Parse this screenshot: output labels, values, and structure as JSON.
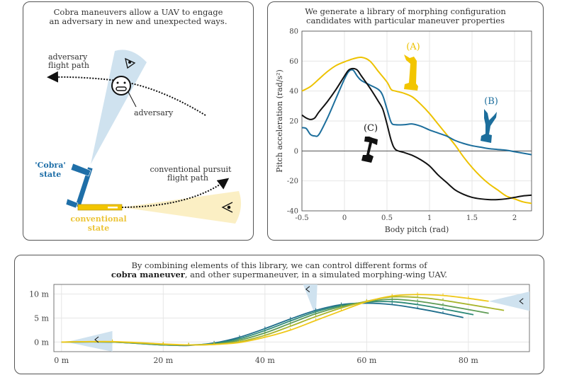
{
  "left_panel": {
    "title_line1": "Cobra maneuvers allow a UAV to engage",
    "title_line2": "an adversary in new and unexpected ways.",
    "adversary_path_label_1": "adversary",
    "adversary_path_label_2": "flight path",
    "adversary_label": "adversary",
    "cobra_label_1": "'Cobra'",
    "cobra_label_2": "state",
    "conventional_label_1": "conventional",
    "conventional_label_2": "state",
    "pursuit_label_1": "conventional pursuit",
    "pursuit_label_2": "flight path",
    "colors": {
      "cobra": "#1f6fa8",
      "conventional": "#f2c500",
      "cone_blue": "#cfe2ef",
      "cone_yellow": "#fbefc4"
    }
  },
  "right_panel": {
    "title_line1": "We generate a library of morphing configuration",
    "title_line2": "candidates with particular maneuver properties"
  },
  "bottom_panel": {
    "title_line1": "By combining elements of this library, we can control different forms of",
    "title_bold": "cobra maneuver",
    "title_line2_rest": ", and other supermaneuver, in a simulated morphing-wing UAV."
  },
  "chart_data": [
    {
      "type": "line",
      "xlabel": "Body pitch (rad)",
      "ylabel": "Pitch acceleration (rad/s²)",
      "xlim": [
        -0.5,
        2.2
      ],
      "ylim": [
        -40,
        80
      ],
      "xticks": [
        "-0.5",
        "0",
        "0.5",
        "1",
        "1.5",
        "2"
      ],
      "yticks": [
        "-40",
        "-20",
        "0",
        "20",
        "40",
        "60",
        "80"
      ],
      "grid": true,
      "series": [
        {
          "name": "(A)",
          "color": "#edc200",
          "x": [
            -0.5,
            -0.4,
            -0.3,
            -0.2,
            -0.1,
            0,
            0.1,
            0.2,
            0.3,
            0.4,
            0.5,
            0.55,
            0.6,
            0.7,
            0.8,
            0.9,
            1.0,
            1.1,
            1.2,
            1.3,
            1.4,
            1.5,
            1.6,
            1.7,
            1.8,
            1.9,
            2.0,
            2.1,
            2.2
          ],
          "y": [
            40,
            43,
            48,
            53,
            57,
            59.5,
            61.5,
            62.5,
            60,
            53,
            46,
            41,
            40,
            38.5,
            36,
            31,
            25,
            18,
            11,
            4,
            -4,
            -11,
            -17,
            -22,
            -26,
            -30,
            -32,
            -34,
            -35
          ]
        },
        {
          "name": "(B)",
          "color": "#1c6e9c",
          "x": [
            -0.5,
            -0.45,
            -0.4,
            -0.35,
            -0.3,
            -0.2,
            -0.1,
            0,
            0.05,
            0.1,
            0.15,
            0.2,
            0.3,
            0.4,
            0.45,
            0.5,
            0.55,
            0.6,
            0.7,
            0.8,
            0.9,
            1.0,
            1.1,
            1.2,
            1.3,
            1.4,
            1.5,
            1.6,
            1.7,
            1.8,
            1.9,
            2.0,
            2.1,
            2.2
          ],
          "y": [
            15.5,
            15,
            11,
            10,
            11,
            22,
            35,
            48,
            53,
            54,
            50,
            47,
            44,
            41,
            37,
            28,
            19,
            17.5,
            17.5,
            18,
            16.5,
            14,
            12,
            10,
            7,
            5,
            3.5,
            2.5,
            1.5,
            1,
            0.5,
            -0.5,
            -1.5,
            -2.5
          ]
        },
        {
          "name": "(C)",
          "color": "#111111",
          "x": [
            -0.5,
            -0.45,
            -0.4,
            -0.35,
            -0.3,
            -0.2,
            -0.1,
            0,
            0.05,
            0.1,
            0.15,
            0.2,
            0.3,
            0.4,
            0.45,
            0.5,
            0.55,
            0.6,
            0.7,
            0.8,
            0.9,
            1.0,
            1.1,
            1.2,
            1.3,
            1.4,
            1.5,
            1.6,
            1.7,
            1.8,
            1.9,
            2.0,
            2.1,
            2.2
          ],
          "y": [
            24,
            22,
            21,
            22,
            26,
            33,
            41,
            50,
            54,
            55,
            54,
            50,
            42,
            33,
            28,
            18,
            7,
            1,
            -1,
            -3,
            -6,
            -10,
            -16,
            -21,
            -26,
            -29,
            -31,
            -32,
            -32.5,
            -32.5,
            -32,
            -31,
            -30,
            -29.5
          ]
        }
      ]
    },
    {
      "type": "line",
      "xlim": [
        -1.5,
        92
      ],
      "ylim": [
        -2,
        12
      ],
      "xticks": [
        "0 m",
        "20 m",
        "40 m",
        "60 m",
        "80 m"
      ],
      "yticks": [
        "0 m",
        "5 m",
        "10 m"
      ],
      "grid": true,
      "series": [
        {
          "color": "#1f6e8c",
          "x": [
            0,
            10,
            20,
            25,
            30,
            35,
            40,
            45,
            50,
            55,
            60,
            65,
            70,
            75,
            79
          ],
          "y": [
            0,
            0,
            -0.6,
            -0.7,
            -0.2,
            1,
            2.8,
            4.8,
            6.6,
            7.8,
            8.1,
            7.8,
            7,
            6,
            5.1
          ]
        },
        {
          "color": "#2e8a78",
          "x": [
            0,
            10,
            20,
            25,
            30,
            35,
            40,
            45,
            50,
            55,
            60,
            65,
            70,
            75,
            81
          ],
          "y": [
            0,
            0,
            -0.6,
            -0.6,
            -0.3,
            0.7,
            2.4,
            4.4,
            6.3,
            7.6,
            8.3,
            8.4,
            7.8,
            6.9,
            5.7
          ]
        },
        {
          "color": "#5f9c55",
          "x": [
            0,
            10,
            20,
            25,
            30,
            35,
            40,
            45,
            50,
            55,
            60,
            65,
            70,
            75,
            84
          ],
          "y": [
            0,
            0,
            -0.5,
            -0.6,
            -0.4,
            0.4,
            1.9,
            3.9,
            5.9,
            7.4,
            8.4,
            8.9,
            8.5,
            7.7,
            6.0
          ]
        },
        {
          "color": "#a8b52c",
          "x": [
            0,
            10,
            20,
            25,
            30,
            35,
            40,
            45,
            50,
            55,
            60,
            65,
            70,
            75,
            87
          ],
          "y": [
            0,
            0.05,
            -0.5,
            -0.6,
            -0.5,
            0.1,
            1.4,
            3.3,
            5.3,
            7.1,
            8.5,
            9.4,
            9.3,
            8.7,
            6.6
          ]
        },
        {
          "color": "#efc81a",
          "x": [
            0,
            10,
            20,
            25,
            30,
            35,
            40,
            45,
            50,
            55,
            60,
            65,
            70,
            75,
            80,
            84
          ],
          "y": [
            0,
            0.1,
            -0.4,
            -0.6,
            -0.5,
            -0.1,
            1,
            2.5,
            4.5,
            6.5,
            8.4,
            9.6,
            9.9,
            9.7,
            9.1,
            8.5
          ]
        }
      ]
    }
  ]
}
